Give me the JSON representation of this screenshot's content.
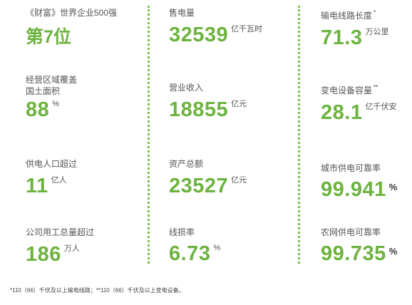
{
  "col1": {
    "s1": {
      "label": "《财富》世界企业500强",
      "big": "第7位"
    },
    "s2": {
      "label1": "经营区域覆盖",
      "label2": "国土面积",
      "value": "88",
      "unit": "%"
    },
    "s3": {
      "label": "供电人口超过",
      "value": "11",
      "unit": "亿人"
    },
    "s4": {
      "label": "公司用工总量超过",
      "value": "186",
      "unit": "万人"
    }
  },
  "col2": {
    "s1": {
      "label": "售电量",
      "value": "32539",
      "unit": "亿千瓦时"
    },
    "s2": {
      "label": "营业收入",
      "value": "18855",
      "unit": "亿元"
    },
    "s3": {
      "label": "资产总额",
      "value": "23527",
      "unit": "亿元"
    },
    "s4": {
      "label": "线损率",
      "value": "6.73",
      "unit": "%"
    }
  },
  "col3": {
    "s1": {
      "label": "输电线路长度",
      "mark": "*",
      "value": "71.3",
      "unit": "万公里"
    },
    "s2": {
      "label": "变电设备容量",
      "mark": "**",
      "value": "28.1",
      "unit": "亿千伏安"
    },
    "s3": {
      "label": "城市供电可靠率",
      "value": "99.941",
      "unit": "%"
    },
    "s4": {
      "label": "农网供电可靠率",
      "value": "99.735",
      "unit": "%"
    }
  },
  "footnote": "*110（66）千伏及以上输电线路；**110（66）千伏及以上变电设备。",
  "colors": {
    "accent": "#6db33f",
    "divider": "#7cc04a",
    "text": "#555555"
  }
}
